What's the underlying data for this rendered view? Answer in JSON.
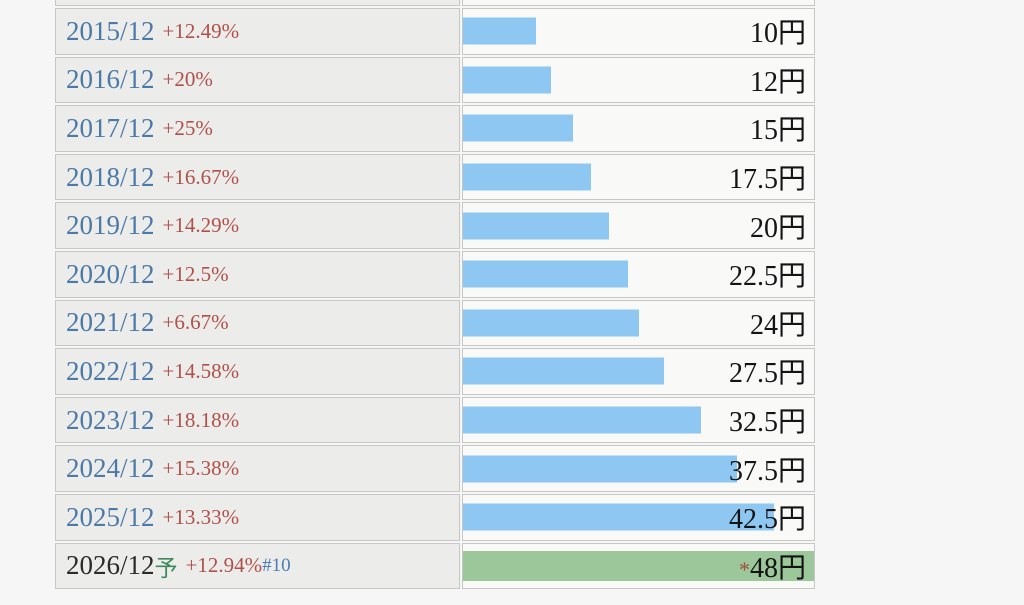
{
  "colors": {
    "bar_blue": "#8ec8f2",
    "bar_green": "#9cc79b",
    "year_blue": "#4c7aa8",
    "pct_red": "#b0504a",
    "forecast_mark_green": "#3f8a5d",
    "note_link_blue": "#4a7cb5",
    "asterisk_red": "#a24d3f",
    "left_cell_bg": "#ececea",
    "right_cell_bg": "#f9f9f8",
    "border": "#c7c7c5",
    "page_bg": "#f5f6f5"
  },
  "chart_data": {
    "type": "bar",
    "orientation": "horizontal",
    "unit": "円",
    "max_value": 48,
    "x_range": [
      0,
      48
    ],
    "grid": false,
    "legend": false,
    "rows": [
      {
        "period": "2015/12",
        "forecast_mark": "",
        "change": "+12.49%",
        "note": "",
        "value": 10,
        "value_label": "10円",
        "asterisk": "",
        "bar": "blue"
      },
      {
        "period": "2016/12",
        "forecast_mark": "",
        "change": "+20%",
        "note": "",
        "value": 12,
        "value_label": "12円",
        "asterisk": "",
        "bar": "blue"
      },
      {
        "period": "2017/12",
        "forecast_mark": "",
        "change": "+25%",
        "note": "",
        "value": 15,
        "value_label": "15円",
        "asterisk": "",
        "bar": "blue"
      },
      {
        "period": "2018/12",
        "forecast_mark": "",
        "change": "+16.67%",
        "note": "",
        "value": 17.5,
        "value_label": "17.5円",
        "asterisk": "",
        "bar": "blue"
      },
      {
        "period": "2019/12",
        "forecast_mark": "",
        "change": "+14.29%",
        "note": "",
        "value": 20,
        "value_label": "20円",
        "asterisk": "",
        "bar": "blue"
      },
      {
        "period": "2020/12",
        "forecast_mark": "",
        "change": "+12.5%",
        "note": "",
        "value": 22.5,
        "value_label": "22.5円",
        "asterisk": "",
        "bar": "blue"
      },
      {
        "period": "2021/12",
        "forecast_mark": "",
        "change": "+6.67%",
        "note": "",
        "value": 24,
        "value_label": "24円",
        "asterisk": "",
        "bar": "blue"
      },
      {
        "period": "2022/12",
        "forecast_mark": "",
        "change": "+14.58%",
        "note": "",
        "value": 27.5,
        "value_label": "27.5円",
        "asterisk": "",
        "bar": "blue"
      },
      {
        "period": "2023/12",
        "forecast_mark": "",
        "change": "+18.18%",
        "note": "",
        "value": 32.5,
        "value_label": "32.5円",
        "asterisk": "",
        "bar": "blue"
      },
      {
        "period": "2024/12",
        "forecast_mark": "",
        "change": "+15.38%",
        "note": "",
        "value": 37.5,
        "value_label": "37.5円",
        "asterisk": "",
        "bar": "blue"
      },
      {
        "period": "2025/12",
        "forecast_mark": "",
        "change": "+13.33%",
        "note": "",
        "value": 42.5,
        "value_label": "42.5円",
        "asterisk": "",
        "bar": "blue"
      },
      {
        "period": "2026/12",
        "forecast_mark": "予",
        "change": "+12.94%",
        "note": "#10",
        "value": 48,
        "value_label": "48円",
        "asterisk": "*",
        "bar": "green"
      }
    ]
  }
}
